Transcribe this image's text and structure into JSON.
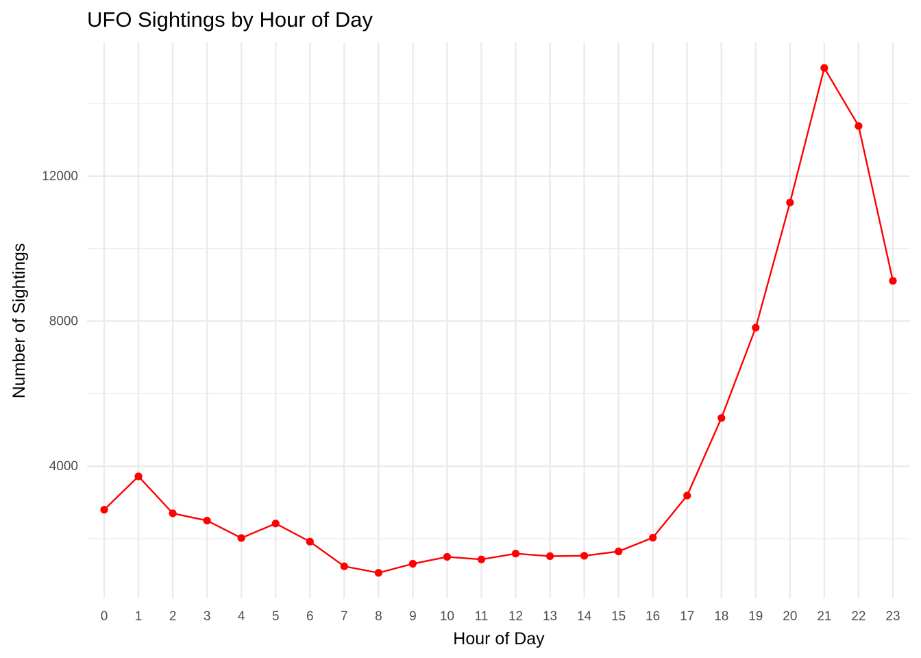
{
  "chart_data": {
    "type": "line",
    "title": "UFO Sightings by Hour of Day",
    "xlabel": "Hour of Day",
    "ylabel": "Number of Sightings",
    "x": [
      0,
      1,
      2,
      3,
      4,
      5,
      6,
      7,
      8,
      9,
      10,
      11,
      12,
      13,
      14,
      15,
      16,
      17,
      18,
      19,
      20,
      21,
      22,
      23
    ],
    "series": [
      {
        "values": [
          2800,
          3720,
          2700,
          2500,
          2020,
          2420,
          1920,
          1240,
          1060,
          1310,
          1500,
          1430,
          1590,
          1520,
          1530,
          1650,
          2030,
          3190,
          5330,
          7820,
          11270,
          14980,
          13380,
          9110
        ],
        "color": "#ff0000"
      }
    ],
    "x_ticks": [
      "0",
      "1",
      "2",
      "3",
      "4",
      "5",
      "6",
      "7",
      "8",
      "9",
      "10",
      "11",
      "12",
      "13",
      "14",
      "15",
      "16",
      "17",
      "18",
      "19",
      "20",
      "21",
      "22",
      "23"
    ],
    "y_ticks": [
      "4000",
      "8000",
      "12000"
    ],
    "y_tick_values": [
      4000,
      8000,
      12000
    ],
    "y_minor_tick_values": [
      2000,
      6000,
      10000,
      14000
    ],
    "xlim": [
      -0.5,
      23.5
    ],
    "ylim": [
      356,
      15682
    ],
    "grid": true,
    "legend": "none"
  }
}
